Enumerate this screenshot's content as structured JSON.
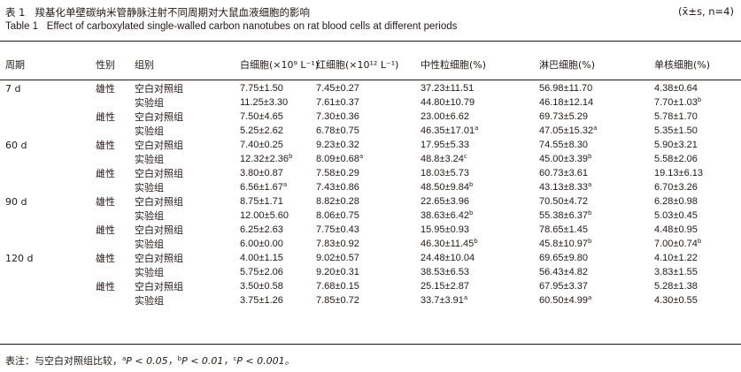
{
  "title": {
    "cn_prefix": "表 1",
    "cn_text": "羧基化单壁碳纳米管静脉注射不同周期对大鼠血液细胞的影响",
    "stat": "(x̄±s, n=4)",
    "en_prefix": "Table 1",
    "en_text": "Effect of carboxylated single-walled carbon nanotubes on rat blood cells at different periods"
  },
  "headers": {
    "period": "周期",
    "sex": "性别",
    "group": "组别",
    "wbc": "白细胞(×10⁹ L⁻¹)",
    "rbc": "红细胞(×10¹² L⁻¹)",
    "neut": "中性粒细胞(%)",
    "lymph": "淋巴细胞(%)",
    "mono": "单核细胞(%)"
  },
  "rows": [
    {
      "period": "7 d",
      "sex": "雄性",
      "group": "空白对照组",
      "wbc": "7.75±1.50",
      "wbc_sup": "",
      "rbc": "7.45±0.27",
      "rbc_sup": "",
      "neut": "37.23±11.51",
      "neut_sup": "",
      "lymph": "56.98±11.70",
      "lymph_sup": "",
      "mono": "4.38±0.64",
      "mono_sup": ""
    },
    {
      "period": "",
      "sex": "",
      "group": "实验组",
      "wbc": "11.25±3.30",
      "wbc_sup": "",
      "rbc": "7.61±0.37",
      "rbc_sup": "",
      "neut": "44.80±10.79",
      "neut_sup": "",
      "lymph": "46.18±12.14",
      "lymph_sup": "",
      "mono": "7.70±1.03",
      "mono_sup": "b"
    },
    {
      "period": "",
      "sex": "雌性",
      "group": "空白对照组",
      "wbc": "7.50±4.65",
      "wbc_sup": "",
      "rbc": "7.30±0.36",
      "rbc_sup": "",
      "neut": "23.00±6.62",
      "neut_sup": "",
      "lymph": "69.73±5.29",
      "lymph_sup": "",
      "mono": "5.78±1.70",
      "mono_sup": ""
    },
    {
      "period": "",
      "sex": "",
      "group": "实验组",
      "wbc": "5.25±2.62",
      "wbc_sup": "",
      "rbc": "6.78±0.75",
      "rbc_sup": "",
      "neut": "46.35±17.01",
      "neut_sup": "a",
      "lymph": "47.05±15.32",
      "lymph_sup": "a",
      "mono": "5.35±1.50",
      "mono_sup": ""
    },
    {
      "period": "60 d",
      "sex": "雄性",
      "group": "空白对照组",
      "wbc": "7.40±0.25",
      "wbc_sup": "",
      "rbc": "9.23±0.32",
      "rbc_sup": "",
      "neut": "17.95±5.33",
      "neut_sup": "",
      "lymph": "74.55±8.30",
      "lymph_sup": "",
      "mono": "5.90±3.21",
      "mono_sup": ""
    },
    {
      "period": "",
      "sex": "",
      "group": "实验组",
      "wbc": "12.32±2.36",
      "wbc_sup": "b",
      "rbc": "8.09±0.68",
      "rbc_sup": "a",
      "neut": "48.8±3.24",
      "neut_sup": "c",
      "lymph": "45.00±3.39",
      "lymph_sup": "b",
      "mono": "5.58±2.06",
      "mono_sup": ""
    },
    {
      "period": "",
      "sex": "雌性",
      "group": "空白对照组",
      "wbc": "3.80±0.87",
      "wbc_sup": "",
      "rbc": "7.58±0.29",
      "rbc_sup": "",
      "neut": "18.03±5.73",
      "neut_sup": "",
      "lymph": "60.73±3.61",
      "lymph_sup": "",
      "mono": "19.13±6.13",
      "mono_sup": ""
    },
    {
      "period": "",
      "sex": "",
      "group": "实验组",
      "wbc": "6.56±1.67",
      "wbc_sup": "a",
      "rbc": "7.43±0.86",
      "rbc_sup": "",
      "neut": "48.50±9.84",
      "neut_sup": "b",
      "lymph": "43.13±8.33",
      "lymph_sup": "a",
      "mono": "6.70±3.26",
      "mono_sup": ""
    },
    {
      "period": "90 d",
      "sex": "雄性",
      "group": "空白对照组",
      "wbc": "8.75±1.71",
      "wbc_sup": "",
      "rbc": "8.82±0.28",
      "rbc_sup": "",
      "neut": "22.65±3.96",
      "neut_sup": "",
      "lymph": "70.50±4.72",
      "lymph_sup": "",
      "mono": "6.28±0.98",
      "mono_sup": ""
    },
    {
      "period": "",
      "sex": "",
      "group": "实验组",
      "wbc": "12.00±5.60",
      "wbc_sup": "",
      "rbc": "8.06±0.75",
      "rbc_sup": "",
      "neut": "38.63±6.42",
      "neut_sup": "b",
      "lymph": "55.38±6.37",
      "lymph_sup": "b",
      "mono": "5.03±0.45",
      "mono_sup": ""
    },
    {
      "period": "",
      "sex": "雌性",
      "group": "空白对照组",
      "wbc": "6.25±2.63",
      "wbc_sup": "",
      "rbc": "7.75±0.43",
      "rbc_sup": "",
      "neut": "15.95±0.93",
      "neut_sup": "",
      "lymph": "78.65±1.45",
      "lymph_sup": "",
      "mono": "4.48±0.95",
      "mono_sup": ""
    },
    {
      "period": "",
      "sex": "",
      "group": "实验组",
      "wbc": "6.00±0.00",
      "wbc_sup": "",
      "rbc": "7.83±0.92",
      "rbc_sup": "",
      "neut": "46.30±11.45",
      "neut_sup": "b",
      "lymph": "45.8±10.97",
      "lymph_sup": "b",
      "mono": "7.00±0.74",
      "mono_sup": "b"
    },
    {
      "period": "120 d",
      "sex": "雄性",
      "group": "空白对照组",
      "wbc": "4.00±1.15",
      "wbc_sup": "",
      "rbc": "9.02±0.57",
      "rbc_sup": "",
      "neut": "24.48±10.04",
      "neut_sup": "",
      "lymph": "69.65±9.80",
      "lymph_sup": "",
      "mono": "4.10±1.22",
      "mono_sup": ""
    },
    {
      "period": "",
      "sex": "",
      "group": "实验组",
      "wbc": "5.75±2.06",
      "wbc_sup": "",
      "rbc": "9.20±0.31",
      "rbc_sup": "",
      "neut": "38.53±6.53",
      "neut_sup": "",
      "lymph": "56.43±4.82",
      "lymph_sup": "",
      "mono": "3.83±1.55",
      "mono_sup": ""
    },
    {
      "period": "",
      "sex": "雌性",
      "group": "空白对照组",
      "wbc": "3.50±0.58",
      "wbc_sup": "",
      "rbc": "7.68±0.15",
      "rbc_sup": "",
      "neut": "25.15±2.87",
      "neut_sup": "",
      "lymph": "67.95±3.37",
      "lymph_sup": "",
      "mono": "5.28±1.38",
      "mono_sup": ""
    },
    {
      "period": "",
      "sex": "",
      "group": "实验组",
      "wbc": "3.75±1.26",
      "wbc_sup": "",
      "rbc": "7.85±0.72",
      "rbc_sup": "",
      "neut": "33.7±3.91",
      "neut_sup": "a",
      "lymph": "60.50±4.99",
      "lymph_sup": "a",
      "mono": "4.30±0.55",
      "mono_sup": ""
    }
  ],
  "note": {
    "prefix": "表注：与空白对照组比较，",
    "a_sup": "a",
    "a_text": "P < 0.05，",
    "b_sup": "b",
    "b_text": "P < 0.01，",
    "c_sup": "c",
    "c_text": "P < 0.001。"
  }
}
